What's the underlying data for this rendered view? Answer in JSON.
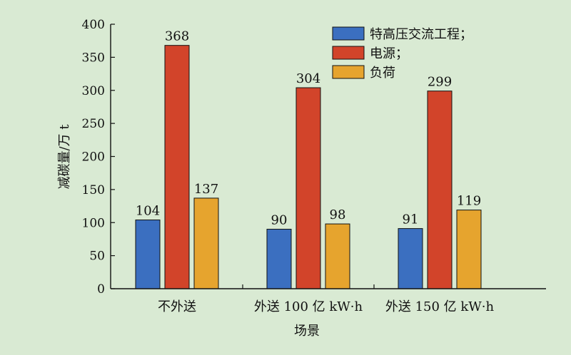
{
  "page": {
    "background": "#d9ead3"
  },
  "chart_data": {
    "type": "bar",
    "title": "",
    "xlabel": "场景",
    "ylabel": "减碳量/万 t",
    "categories": [
      "不外送",
      "外送 100 亿 kW·h",
      "外送 150 亿 kW·h"
    ],
    "series": [
      {
        "name": "特高压交流工程；",
        "color": "#3b6fc0",
        "values": [
          104,
          90,
          91
        ]
      },
      {
        "name": "电源；",
        "color": "#d2442a",
        "values": [
          368,
          304,
          299
        ]
      },
      {
        "name": "负荷",
        "color": "#e6a42e",
        "values": [
          137,
          98,
          119
        ]
      }
    ],
    "ylim": [
      0,
      400
    ],
    "yticks": [
      0,
      50,
      100,
      150,
      200,
      250,
      300,
      350,
      400
    ],
    "grid": false,
    "legend": "top-right",
    "data_labels": true
  }
}
